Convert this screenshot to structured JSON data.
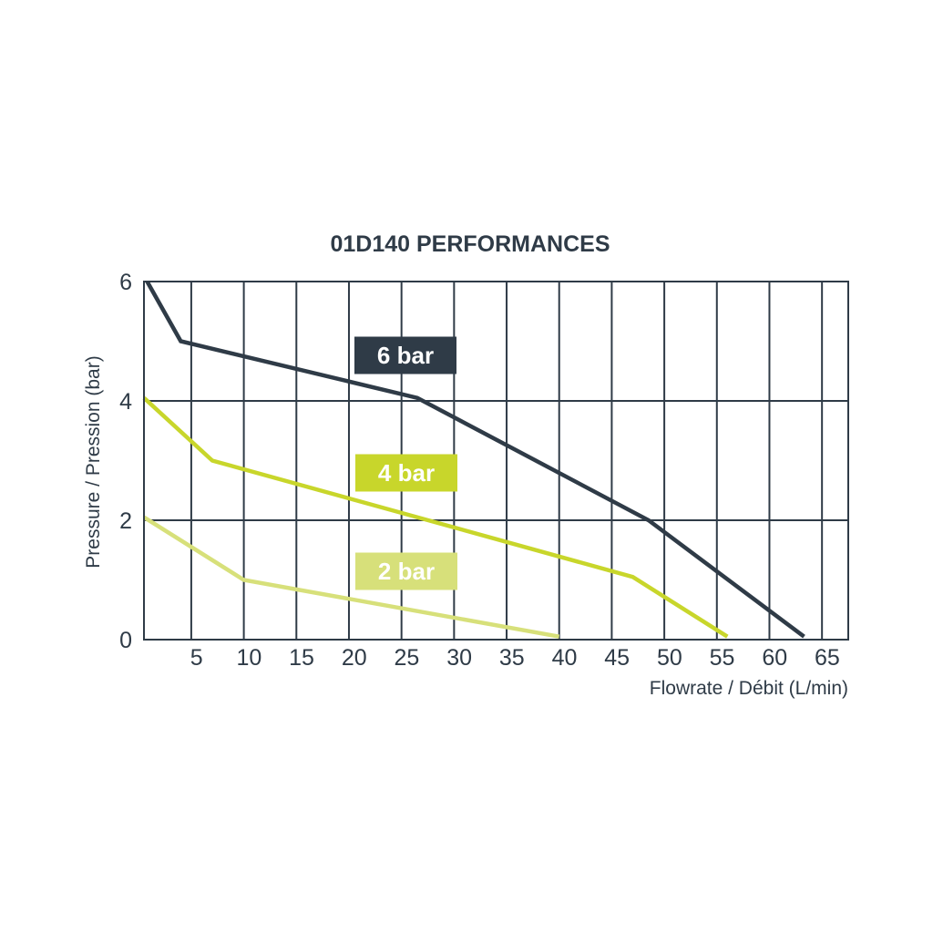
{
  "chart_data": {
    "type": "line",
    "title": "01D140 PERFORMANCES",
    "xlabel": "Flowrate / Débit (L/min)",
    "ylabel": "Pressure / Pression (bar)",
    "xlim": [
      0,
      67
    ],
    "ylim": [
      0,
      6
    ],
    "xticks": [
      5,
      10,
      15,
      20,
      25,
      30,
      35,
      40,
      45,
      50,
      55,
      60,
      65
    ],
    "yticks": [
      0,
      2,
      4,
      6
    ],
    "vertical_grid": [
      4.5,
      9.5,
      14.5,
      19.5,
      24.5,
      29.5,
      34.5,
      39.5,
      44.5,
      49.5,
      54.5,
      59.5,
      64.5
    ],
    "horizontal_grid": [
      2,
      4
    ],
    "grid": true,
    "series": [
      {
        "name": "6 bar",
        "color": "#2f3b47",
        "points": [
          [
            0.3,
            6.0
          ],
          [
            3.5,
            5.0
          ],
          [
            26,
            4.05
          ],
          [
            48,
            2.0
          ],
          [
            62.8,
            0.05
          ]
        ]
      },
      {
        "name": "4 bar",
        "color": "#c8d62b",
        "points": [
          [
            0,
            4.05
          ],
          [
            6.5,
            3.0
          ],
          [
            25,
            2.1
          ],
          [
            46.5,
            1.05
          ],
          [
            55.5,
            0.05
          ]
        ]
      },
      {
        "name": "2 bar",
        "color": "#d7e07a",
        "points": [
          [
            0,
            2.05
          ],
          [
            9.5,
            1.0
          ],
          [
            39.5,
            0.05
          ]
        ]
      }
    ]
  }
}
